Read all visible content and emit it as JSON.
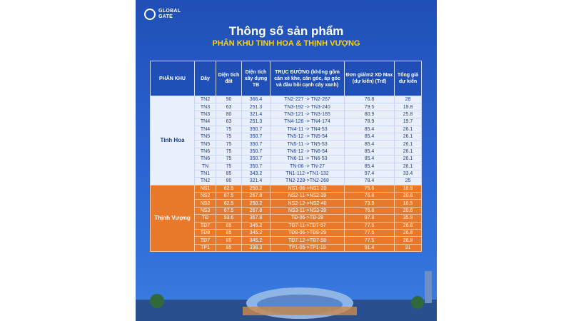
{
  "logo": {
    "line1": "GLOBAL",
    "line2": "GATE"
  },
  "header": {
    "title": "Thông số sản phẩm",
    "subtitle": "PHÂN KHU TINH HOA & THỊNH VƯỢNG"
  },
  "table": {
    "headers": [
      "PHÂN KHU",
      "Dãy",
      "Diện tích đất",
      "Diện tích xây dựng TB",
      "TRỤC ĐƯỜNG (không gồm căn xè khe, căn góc, áp góc và đầu hồi cạnh cây xanh)",
      "Đơn giá/m2 XD Max (dự kiến) (Trđ)",
      "Tổng giá dự kiến"
    ],
    "groups": [
      {
        "name": "Tinh Hoa",
        "rows": [
          [
            "TN2",
            "90",
            "366.4",
            "TN2-227 -> TN2-267",
            "76.8",
            "28"
          ],
          [
            "TN3",
            "63",
            "251.3",
            "TN3-192 -> TN3-240",
            "79.5",
            "19.8"
          ],
          [
            "TN3",
            "80",
            "321.4",
            "TN3-121 -> TN3-165",
            "80.9",
            "25.8"
          ],
          [
            "TN4",
            "63",
            "251.3",
            "TN4-126 -> TN4-174",
            "78.9",
            "19.7"
          ],
          [
            "TN4",
            "75",
            "350.7",
            "TN4-11 -> TN4-53",
            "85.4",
            "26.1"
          ],
          [
            "TN5",
            "75",
            "350.7",
            "TN5-12 -> TN5-54",
            "85.4",
            "26.1"
          ],
          [
            "TN5",
            "75",
            "350.7",
            "TN5-11 -> TN5-53",
            "85.4",
            "26.1"
          ],
          [
            "TN6",
            "75",
            "350.7",
            "TN6-12 -> TN6-54",
            "85.4",
            "26.1"
          ],
          [
            "TN6",
            "75",
            "350.7",
            "TN6-11 -> TN6-53",
            "85.4",
            "26.1"
          ],
          [
            "TN",
            "75",
            "350.7",
            "TN-06 -> TN-27",
            "85.4",
            "26.1"
          ],
          [
            "TN1",
            "85",
            "343.2",
            "TN1-112->TN1-132",
            "97.4",
            "33.4"
          ],
          [
            "TN2",
            "80",
            "321.4",
            "TN2-228->TN2-268",
            "78.4",
            "25"
          ]
        ]
      },
      {
        "name": "Thịnh Vượng",
        "rows": [
          [
            "NS1",
            "62.5",
            "250.2",
            "NS1-06->NS1-20",
            "75.6",
            "18.9"
          ],
          [
            "NS2",
            "67.5",
            "267.8",
            "NS2-11->NS2-39",
            "76.8",
            "20.6"
          ],
          [
            "NS2",
            "62.5",
            "250.2",
            "NS2-12->NS2-40",
            "73.9",
            "18.5"
          ],
          [
            "NS3",
            "67.5",
            "267.8",
            "NS3-11->NS3-39",
            "76.8",
            "20.6"
          ],
          [
            "TĐ",
            "93.6",
            "367.8",
            "TĐ-06->TĐ-28",
            "97.8",
            "35.9"
          ],
          [
            "TĐ7",
            "85",
            "345.2",
            "TĐ7-11->TĐ7-57",
            "77.5",
            "26.8"
          ],
          [
            "TĐ8",
            "85",
            "345.2",
            "TĐ8-06->TĐ8-29",
            "77.5",
            "26.8"
          ],
          [
            "TĐ7",
            "85",
            "345.2",
            "TĐ7-12->TĐ7-58",
            "77.5",
            "26.8"
          ],
          [
            "TP1",
            "85",
            "338.3",
            "TP1-05->TP1-19",
            "91.4",
            "31"
          ]
        ]
      }
    ]
  }
}
